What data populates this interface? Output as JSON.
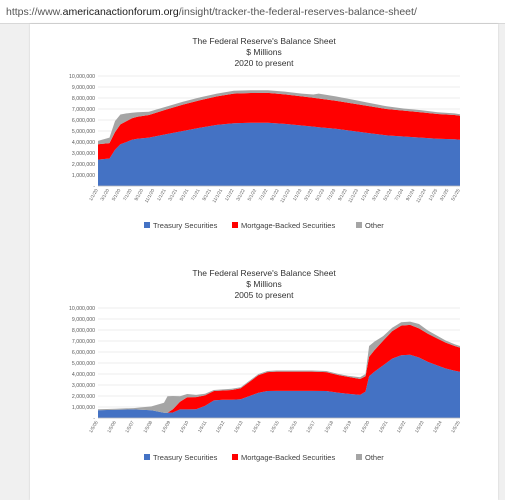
{
  "browser": {
    "url_prefix": "https://www.",
    "url_host": "americanactionforum.org",
    "url_path": "/insight/tracker-the-federal-reserves-balance-sheet/"
  },
  "chart_data": [
    {
      "type": "area",
      "stacked": true,
      "title": "The Federal Reserve's Balance Sheet",
      "subtitle": "$ Millions",
      "subtitle2": "2020 to present",
      "ylim": [
        0,
        10000000
      ],
      "yticks": [
        "-",
        "1,000,000",
        "2,000,000",
        "3,000,000",
        "4,000,000",
        "5,000,000",
        "6,000,000",
        "7,000,000",
        "8,000,000",
        "9,000,000",
        "10,000,000"
      ],
      "x_ticks": [
        "1/1/20",
        "3/1/20",
        "5/1/20",
        "7/1/20",
        "9/1/20",
        "11/1/20",
        "1/1/21",
        "3/1/21",
        "5/1/21",
        "7/1/21",
        "9/1/21",
        "11/1/21",
        "1/1/22",
        "3/1/22",
        "5/1/22",
        "7/1/22",
        "9/1/22",
        "11/1/22",
        "1/1/23",
        "3/1/23",
        "5/1/23",
        "7/1/23",
        "9/1/23",
        "11/1/23",
        "1/1/24",
        "3/1/24",
        "5/1/24",
        "7/1/24",
        "9/1/24",
        "11/1/24",
        "1/1/25",
        "3/1/25",
        "5/1/25"
      ],
      "grid": true,
      "legend_position": "bottom",
      "x": [
        2020.0,
        2020.17,
        2020.25,
        2020.33,
        2020.42,
        2020.5,
        2020.58,
        2020.75,
        2021.0,
        2021.25,
        2021.5,
        2021.75,
        2022.0,
        2022.25,
        2022.5,
        2022.75,
        2023.0,
        2023.17,
        2023.25,
        2023.5,
        2023.75,
        2024.0,
        2024.25,
        2024.5,
        2024.75,
        2025.0,
        2025.25,
        2025.33
      ],
      "series": [
        {
          "name": "Treasury Securities",
          "color": "#4472c4",
          "values": [
            2400000,
            2500000,
            3300000,
            3800000,
            4000000,
            4200000,
            4300000,
            4400000,
            4700000,
            5000000,
            5300000,
            5550000,
            5700000,
            5750000,
            5750000,
            5650000,
            5500000,
            5400000,
            5350000,
            5200000,
            5000000,
            4800000,
            4600000,
            4500000,
            4400000,
            4300000,
            4250000,
            4200000
          ]
        },
        {
          "name": "Mortgage-Backed Securities",
          "color": "#ff0000",
          "values": [
            1400000,
            1400000,
            1600000,
            1800000,
            1900000,
            1950000,
            2000000,
            2050000,
            2250000,
            2400000,
            2500000,
            2600000,
            2700000,
            2700000,
            2710000,
            2680000,
            2650000,
            2620000,
            2600000,
            2550000,
            2500000,
            2450000,
            2400000,
            2350000,
            2300000,
            2250000,
            2200000,
            2180000
          ]
        },
        {
          "name": "Other",
          "color": "#a5a5a5",
          "values": [
            300000,
            500000,
            1000000,
            900000,
            700000,
            500000,
            400000,
            300000,
            250000,
            250000,
            250000,
            250000,
            250000,
            250000,
            250000,
            250000,
            250000,
            300000,
            450000,
            400000,
            350000,
            300000,
            250000,
            200000,
            200000,
            150000,
            150000,
            150000
          ]
        }
      ]
    },
    {
      "type": "area",
      "stacked": true,
      "title": "The Federal Reserve's Balance Sheet",
      "subtitle": "$ Millions",
      "subtitle2": "2005 to present",
      "ylim": [
        0,
        10000000
      ],
      "yticks": [
        "-",
        "1,000,000",
        "2,000,000",
        "3,000,000",
        "4,000,000",
        "5,000,000",
        "6,000,000",
        "7,000,000",
        "8,000,000",
        "9,000,000",
        "10,000,000"
      ],
      "x_ticks": [
        "1/5/05",
        "1/5/06",
        "1/5/07",
        "1/5/08",
        "1/5/09",
        "1/5/10",
        "1/5/11",
        "1/5/12",
        "1/5/13",
        "1/5/14",
        "1/5/15",
        "1/5/16",
        "1/5/17",
        "1/5/18",
        "1/5/19",
        "1/5/20",
        "1/5/21",
        "1/5/22",
        "1/5/23",
        "1/5/24",
        "1/5/25"
      ],
      "grid": true,
      "legend_position": "bottom",
      "x": [
        2005.0,
        2006.0,
        2007.0,
        2008.0,
        2008.7,
        2008.9,
        2009.2,
        2009.6,
        2010.0,
        2010.5,
        2011.0,
        2011.5,
        2012.0,
        2012.5,
        2013.0,
        2013.5,
        2014.0,
        2014.5,
        2015.0,
        2016.0,
        2017.0,
        2017.8,
        2018.5,
        2019.0,
        2019.7,
        2020.0,
        2020.2,
        2020.5,
        2021.0,
        2021.5,
        2022.0,
        2022.5,
        2023.0,
        2023.5,
        2024.0,
        2024.5,
        2025.0,
        2025.3
      ],
      "series": [
        {
          "name": "Treasury Securities",
          "color": "#4472c4",
          "values": [
            700000,
            750000,
            780000,
            700000,
            480000,
            480000,
            500000,
            780000,
            780000,
            800000,
            1100000,
            1600000,
            1650000,
            1650000,
            1700000,
            2000000,
            2300000,
            2450000,
            2460000,
            2460000,
            2460000,
            2450000,
            2300000,
            2200000,
            2100000,
            2400000,
            3800000,
            4200000,
            4800000,
            5400000,
            5700000,
            5750000,
            5500000,
            5100000,
            4800000,
            4500000,
            4300000,
            4200000
          ]
        },
        {
          "name": "Mortgage-Backed Securities",
          "color": "#ff0000",
          "values": [
            0,
            0,
            0,
            0,
            0,
            0,
            300000,
            700000,
            1100000,
            1100000,
            950000,
            850000,
            850000,
            900000,
            1000000,
            1300000,
            1600000,
            1720000,
            1760000,
            1760000,
            1760000,
            1720000,
            1600000,
            1550000,
            1450000,
            1400000,
            1750000,
            1950000,
            2250000,
            2500000,
            2700000,
            2710000,
            2650000,
            2550000,
            2450000,
            2350000,
            2250000,
            2200000
          ]
        },
        {
          "name": "Other",
          "color": "#a5a5a5",
          "values": [
            100000,
            100000,
            120000,
            350000,
            900000,
            1500000,
            1200000,
            500000,
            300000,
            200000,
            150000,
            100000,
            100000,
            100000,
            100000,
            100000,
            100000,
            100000,
            100000,
            100000,
            100000,
            100000,
            100000,
            100000,
            150000,
            200000,
            1000000,
            800000,
            400000,
            300000,
            300000,
            300000,
            400000,
            300000,
            250000,
            200000,
            150000,
            150000
          ]
        }
      ]
    }
  ]
}
